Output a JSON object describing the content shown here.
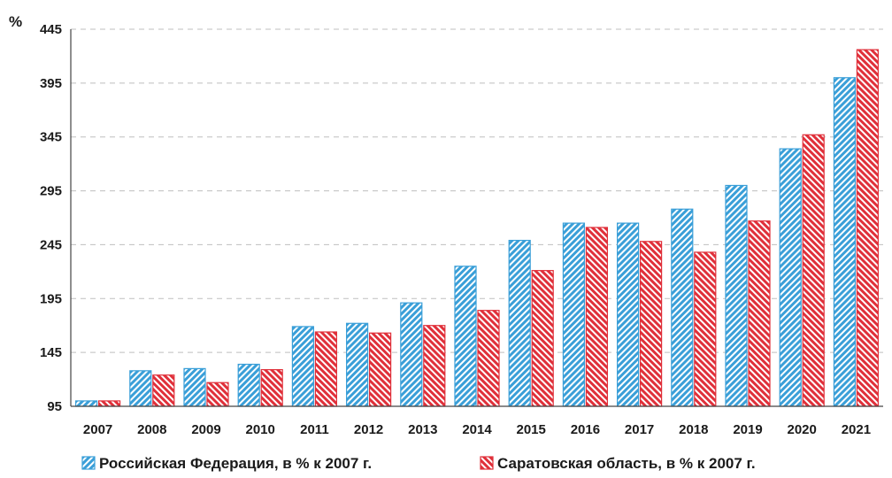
{
  "chart_data": {
    "type": "bar",
    "ylabel": "%",
    "ylim": [
      95,
      445
    ],
    "yticks": [
      "95",
      "145",
      "195",
      "245",
      "295",
      "345",
      "395",
      "445"
    ],
    "categories": [
      "2007",
      "2008",
      "2009",
      "2010",
      "2011",
      "2012",
      "2013",
      "2014",
      "2015",
      "2016",
      "2017",
      "2018",
      "2019",
      "2020",
      "2021"
    ],
    "series": [
      {
        "name": "Российская Федерация, в % к 2007 г.",
        "color": "#3a9fd8",
        "pattern": "diagonal-hatch",
        "values": [
          100,
          128,
          130,
          134,
          169,
          172,
          191,
          225,
          249,
          265,
          265,
          278,
          300,
          334,
          400
        ]
      },
      {
        "name": "Саратовская область, в % к 2007 г.",
        "color": "#e0303a",
        "pattern": "diagonal-hatch",
        "values": [
          100,
          124,
          117,
          129,
          164,
          163,
          170,
          184,
          221,
          261,
          248,
          238,
          267,
          347,
          426
        ]
      }
    ],
    "grid": true,
    "legend_position": "bottom"
  }
}
